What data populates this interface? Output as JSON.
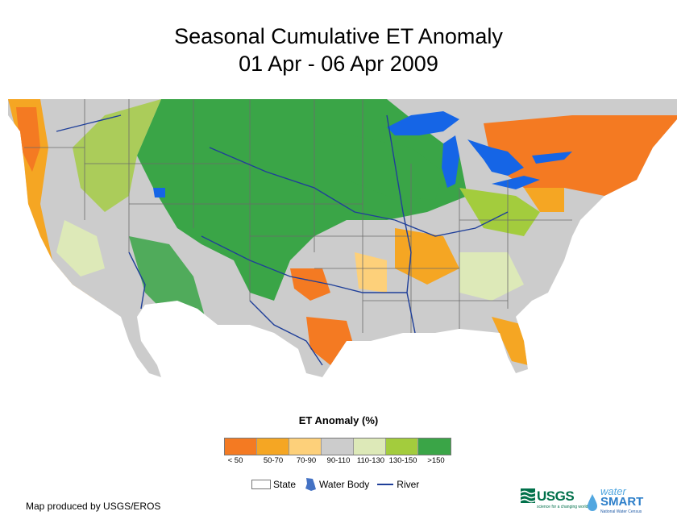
{
  "title": {
    "line1": "Seasonal Cumulative ET Anomaly",
    "line2": "01 Apr - 06 Apr 2009"
  },
  "legend": {
    "title": "ET Anomaly (%)",
    "classes": [
      {
        "label": "< 50",
        "color": "#f47a22"
      },
      {
        "label": "50-70",
        "color": "#f5a623"
      },
      {
        "label": "70-90",
        "color": "#fdd07a"
      },
      {
        "label": "90-110",
        "color": "#cccccc"
      },
      {
        "label": "110-130",
        "color": "#dde9b8"
      },
      {
        "label": "130-150",
        "color": "#a3cc3d"
      },
      {
        "label": ">150",
        "color": "#3aa547"
      }
    ],
    "features": {
      "state": "State",
      "water_body": "Water Body",
      "river": "River"
    }
  },
  "colors": {
    "water": "#1565e6",
    "river": "#1f3f99",
    "state_line": "#6b6b6b"
  },
  "credit": "Map produced by USGS/EROS",
  "logos": {
    "usgs": "USGS",
    "usgs_tagline": "science for a changing world",
    "water": "water",
    "smart": "SMART",
    "smart_tagline": "National Water Census"
  }
}
